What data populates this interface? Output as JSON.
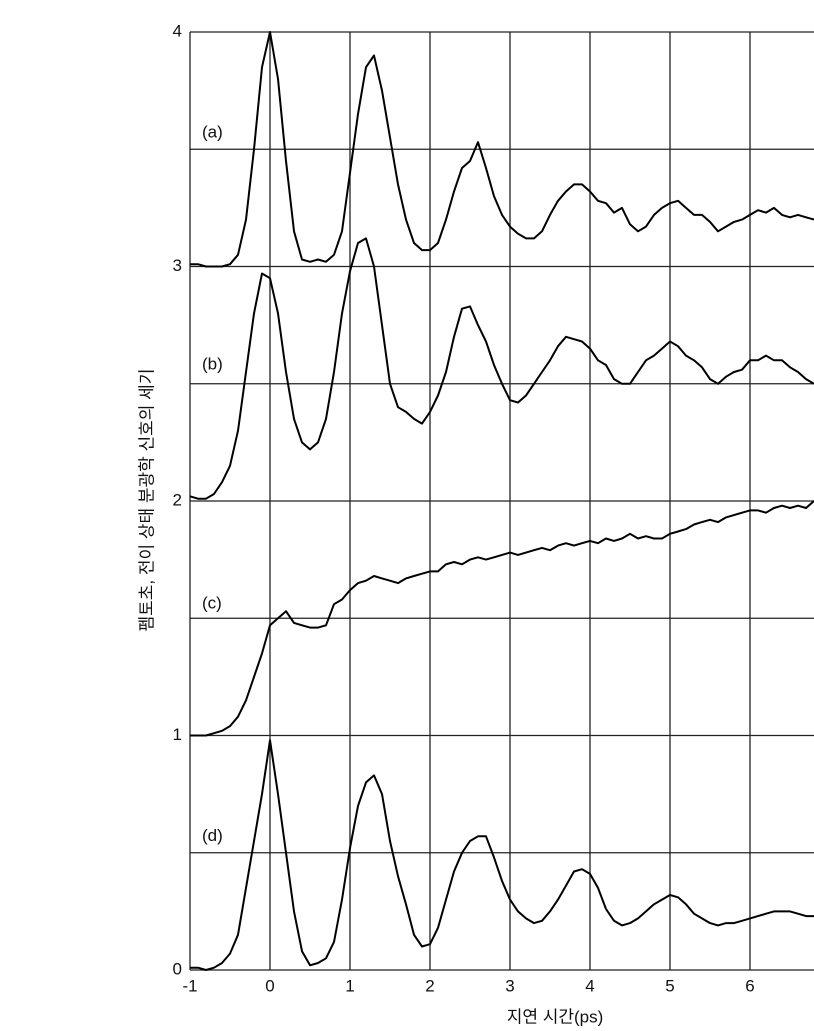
{
  "chart_data": {
    "type": "line",
    "xlabel": "지연 시간(ps)",
    "ylabel": "펨토초, 전이 상태 분광학 신호의 세기",
    "xlim": [
      -1,
      6.8
    ],
    "ylim": [
      0,
      4
    ],
    "xticks": [
      -1,
      0,
      1,
      2,
      3,
      4,
      5,
      6
    ],
    "yticks": [
      0,
      1,
      2,
      3,
      4
    ],
    "ygrid": [
      0,
      0.5,
      1,
      1.5,
      2,
      2.5,
      3,
      3.5,
      4
    ],
    "grid": true,
    "x": [
      -1.0,
      -0.9,
      -0.8,
      -0.7,
      -0.6,
      -0.5,
      -0.4,
      -0.3,
      -0.2,
      -0.1,
      0.0,
      0.1,
      0.2,
      0.3,
      0.4,
      0.5,
      0.6,
      0.7,
      0.8,
      0.9,
      1.0,
      1.1,
      1.2,
      1.3,
      1.4,
      1.5,
      1.6,
      1.7,
      1.8,
      1.9,
      2.0,
      2.1,
      2.2,
      2.3,
      2.4,
      2.5,
      2.6,
      2.7,
      2.8,
      2.9,
      3.0,
      3.1,
      3.2,
      3.3,
      3.4,
      3.5,
      3.6,
      3.7,
      3.8,
      3.9,
      4.0,
      4.1,
      4.2,
      4.3,
      4.4,
      4.5,
      4.6,
      4.7,
      4.8,
      4.9,
      5.0,
      5.1,
      5.2,
      5.3,
      5.4,
      5.5,
      5.6,
      5.7,
      5.8,
      5.9,
      6.0,
      6.1,
      6.2,
      6.3,
      6.4,
      6.5,
      6.6,
      6.7,
      6.8
    ],
    "series": [
      {
        "name": "(a)",
        "color": "#000000",
        "values": [
          3.01,
          3.01,
          3.0,
          3.0,
          3.0,
          3.01,
          3.05,
          3.2,
          3.5,
          3.85,
          4.0,
          3.8,
          3.45,
          3.15,
          3.03,
          3.02,
          3.03,
          3.02,
          3.05,
          3.15,
          3.4,
          3.65,
          3.85,
          3.9,
          3.75,
          3.55,
          3.35,
          3.2,
          3.1,
          3.07,
          3.07,
          3.1,
          3.2,
          3.32,
          3.42,
          3.45,
          3.53,
          3.42,
          3.3,
          3.22,
          3.17,
          3.14,
          3.12,
          3.12,
          3.15,
          3.22,
          3.28,
          3.32,
          3.35,
          3.35,
          3.32,
          3.28,
          3.27,
          3.23,
          3.25,
          3.18,
          3.15,
          3.17,
          3.22,
          3.25,
          3.27,
          3.28,
          3.25,
          3.22,
          3.22,
          3.19,
          3.15,
          3.17,
          3.19,
          3.2,
          3.22,
          3.24,
          3.23,
          3.25,
          3.22,
          3.21,
          3.22,
          3.21,
          3.2
        ]
      },
      {
        "name": "(b)",
        "color": "#000000",
        "values": [
          2.02,
          2.01,
          2.01,
          2.03,
          2.08,
          2.15,
          2.3,
          2.55,
          2.8,
          2.97,
          2.95,
          2.8,
          2.55,
          2.35,
          2.25,
          2.22,
          2.25,
          2.35,
          2.55,
          2.8,
          2.98,
          3.1,
          3.12,
          3.0,
          2.75,
          2.5,
          2.4,
          2.38,
          2.35,
          2.33,
          2.38,
          2.45,
          2.55,
          2.7,
          2.82,
          2.83,
          2.75,
          2.68,
          2.58,
          2.5,
          2.43,
          2.42,
          2.45,
          2.5,
          2.55,
          2.6,
          2.66,
          2.7,
          2.69,
          2.68,
          2.65,
          2.6,
          2.58,
          2.52,
          2.5,
          2.5,
          2.55,
          2.6,
          2.62,
          2.65,
          2.68,
          2.66,
          2.62,
          2.6,
          2.57,
          2.52,
          2.5,
          2.53,
          2.55,
          2.56,
          2.6,
          2.6,
          2.62,
          2.6,
          2.6,
          2.57,
          2.55,
          2.52,
          2.5
        ]
      },
      {
        "name": "(c)",
        "color": "#000000",
        "values": [
          1.0,
          1.0,
          1.0,
          1.01,
          1.02,
          1.04,
          1.08,
          1.15,
          1.25,
          1.35,
          1.47,
          1.5,
          1.53,
          1.48,
          1.47,
          1.46,
          1.46,
          1.47,
          1.56,
          1.58,
          1.62,
          1.65,
          1.66,
          1.68,
          1.67,
          1.66,
          1.65,
          1.67,
          1.68,
          1.69,
          1.7,
          1.7,
          1.73,
          1.74,
          1.73,
          1.75,
          1.76,
          1.75,
          1.76,
          1.77,
          1.78,
          1.77,
          1.78,
          1.79,
          1.8,
          1.79,
          1.81,
          1.82,
          1.81,
          1.82,
          1.83,
          1.82,
          1.84,
          1.83,
          1.84,
          1.86,
          1.84,
          1.85,
          1.84,
          1.84,
          1.86,
          1.87,
          1.88,
          1.9,
          1.91,
          1.92,
          1.91,
          1.93,
          1.94,
          1.95,
          1.96,
          1.96,
          1.95,
          1.97,
          1.98,
          1.97,
          1.98,
          1.97,
          2.0
        ]
      },
      {
        "name": "(d)",
        "color": "#000000",
        "values": [
          0.01,
          0.01,
          0.0,
          0.01,
          0.03,
          0.07,
          0.15,
          0.35,
          0.55,
          0.75,
          0.98,
          0.75,
          0.5,
          0.25,
          0.08,
          0.02,
          0.03,
          0.05,
          0.12,
          0.3,
          0.52,
          0.7,
          0.8,
          0.83,
          0.75,
          0.55,
          0.4,
          0.28,
          0.15,
          0.1,
          0.11,
          0.18,
          0.3,
          0.42,
          0.5,
          0.55,
          0.57,
          0.57,
          0.48,
          0.38,
          0.3,
          0.25,
          0.22,
          0.2,
          0.21,
          0.25,
          0.3,
          0.36,
          0.42,
          0.43,
          0.41,
          0.35,
          0.26,
          0.21,
          0.19,
          0.2,
          0.22,
          0.25,
          0.28,
          0.3,
          0.32,
          0.31,
          0.28,
          0.24,
          0.22,
          0.2,
          0.19,
          0.2,
          0.2,
          0.21,
          0.22,
          0.23,
          0.24,
          0.25,
          0.25,
          0.25,
          0.24,
          0.23,
          0.23
        ]
      }
    ]
  }
}
